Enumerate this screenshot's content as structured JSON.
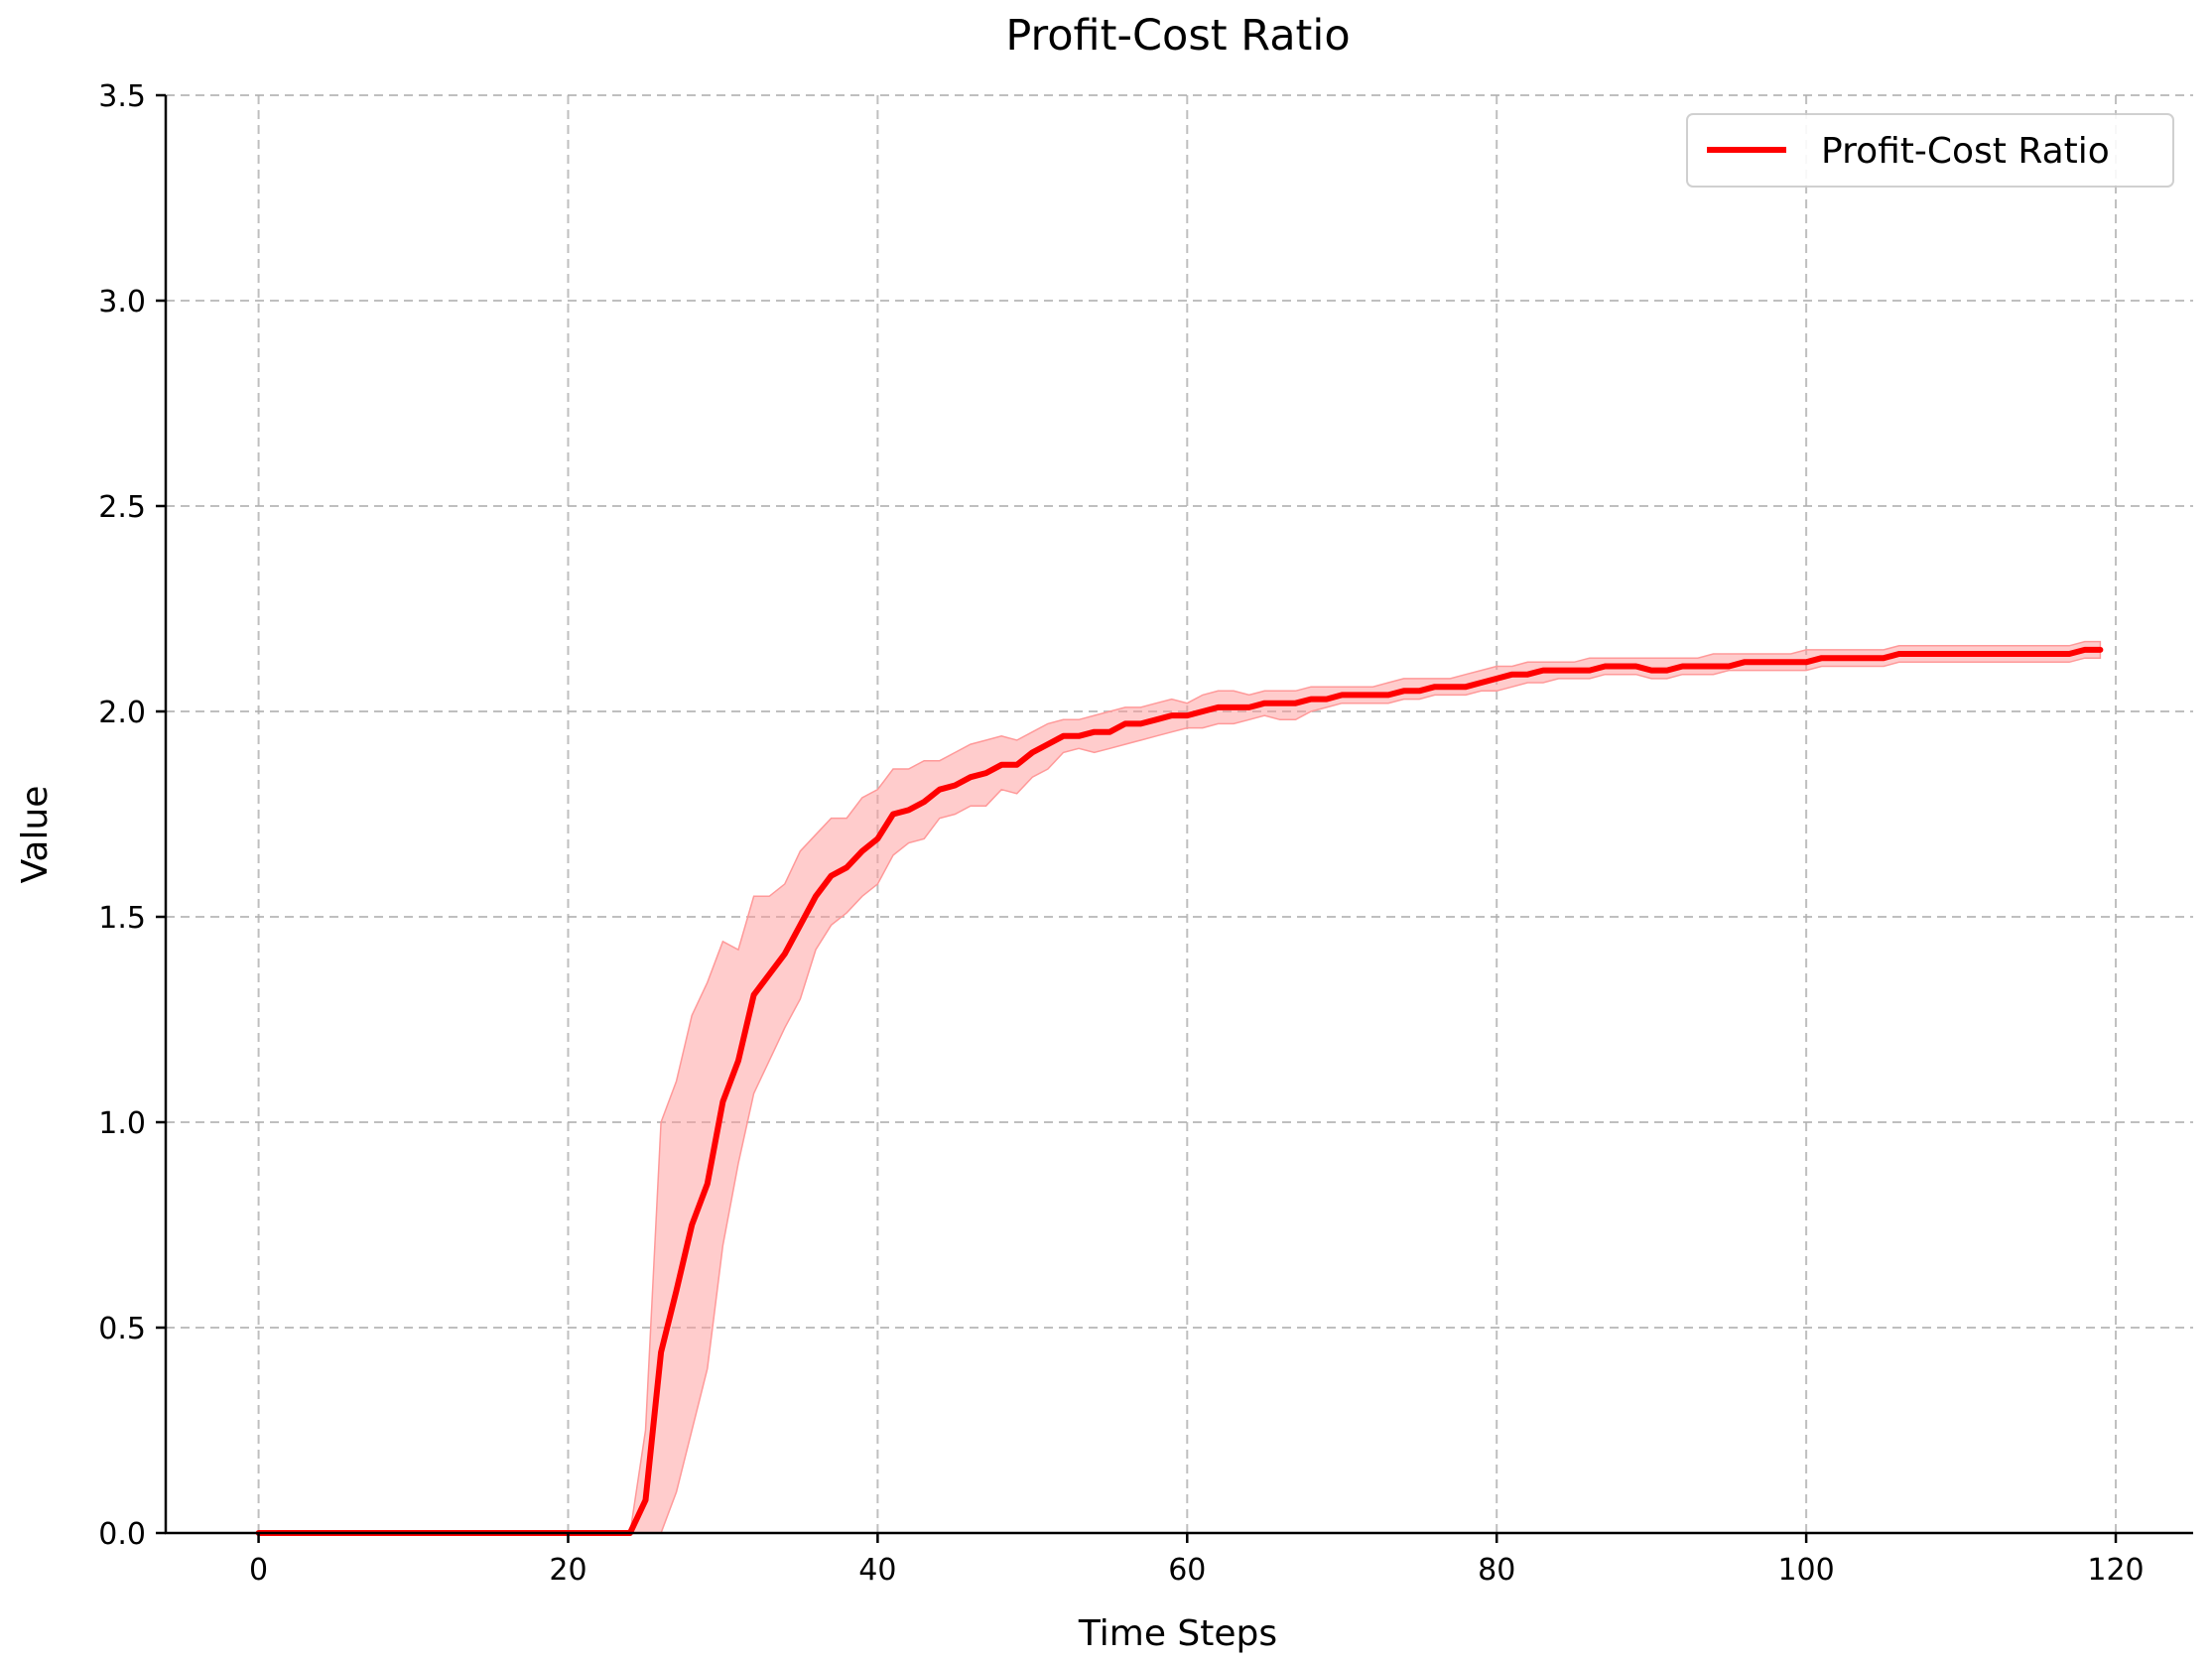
{
  "chart_data": {
    "type": "line",
    "title": "Profit-Cost Ratio",
    "xlabel": "Time Steps",
    "ylabel": "Value",
    "xlim": [
      -6,
      125
    ],
    "ylim": [
      0,
      3.5
    ],
    "xticks": [
      0,
      20,
      40,
      60,
      80,
      100,
      120
    ],
    "yticks": [
      0.0,
      0.5,
      1.0,
      1.5,
      2.0,
      2.5,
      3.0,
      3.5
    ],
    "xtick_labels": [
      "0",
      "20",
      "40",
      "60",
      "80",
      "100",
      "120"
    ],
    "ytick_labels": [
      "0.0",
      "0.5",
      "1.0",
      "1.5",
      "2.0",
      "2.5",
      "3.0",
      "3.5"
    ],
    "grid": true,
    "legend_position": "upper right",
    "series": [
      {
        "name": "Profit-Cost Ratio",
        "color": "#ff0000",
        "band_color": "#ff9999",
        "x": [
          0,
          1,
          2,
          3,
          4,
          5,
          6,
          7,
          8,
          9,
          10,
          11,
          12,
          13,
          14,
          15,
          16,
          17,
          18,
          19,
          20,
          21,
          22,
          23,
          24,
          25,
          26,
          27,
          28,
          29,
          30,
          31,
          32,
          33,
          34,
          35,
          36,
          37,
          38,
          39,
          40,
          41,
          42,
          43,
          44,
          45,
          46,
          47,
          48,
          49,
          50,
          51,
          52,
          53,
          54,
          55,
          56,
          57,
          58,
          59,
          60,
          61,
          62,
          63,
          64,
          65,
          66,
          67,
          68,
          69,
          70,
          71,
          72,
          73,
          74,
          75,
          76,
          77,
          78,
          79,
          80,
          81,
          82,
          83,
          84,
          85,
          86,
          87,
          88,
          89,
          90,
          91,
          92,
          93,
          94,
          95,
          96,
          97,
          98,
          99,
          100,
          101,
          102,
          103,
          104,
          105,
          106,
          107,
          108,
          109,
          110,
          111,
          112,
          113,
          114,
          115,
          116,
          117,
          118,
          119
        ],
        "y": [
          0,
          0,
          0,
          0,
          0,
          0,
          0,
          0,
          0,
          0,
          0,
          0,
          0,
          0,
          0,
          0,
          0,
          0,
          0,
          0,
          0,
          0,
          0,
          0,
          0,
          0.08,
          0.44,
          0.59,
          0.75,
          0.85,
          1.05,
          1.15,
          1.31,
          1.36,
          1.41,
          1.48,
          1.55,
          1.6,
          1.62,
          1.66,
          1.69,
          1.75,
          1.76,
          1.78,
          1.81,
          1.82,
          1.84,
          1.85,
          1.87,
          1.87,
          1.9,
          1.92,
          1.94,
          1.94,
          1.95,
          1.95,
          1.97,
          1.97,
          1.98,
          1.99,
          1.99,
          2.0,
          2.01,
          2.01,
          2.01,
          2.02,
          2.02,
          2.02,
          2.03,
          2.03,
          2.04,
          2.04,
          2.04,
          2.04,
          2.05,
          2.05,
          2.06,
          2.06,
          2.06,
          2.07,
          2.08,
          2.09,
          2.09,
          2.1,
          2.1,
          2.1,
          2.1,
          2.11,
          2.11,
          2.11,
          2.1,
          2.1,
          2.11,
          2.11,
          2.11,
          2.11,
          2.12,
          2.12,
          2.12,
          2.12,
          2.12,
          2.13,
          2.13,
          2.13,
          2.13,
          2.13,
          2.14,
          2.14,
          2.14,
          2.14,
          2.14,
          2.14,
          2.14,
          2.14,
          2.14,
          2.14,
          2.14,
          2.14,
          2.15,
          2.15
        ],
        "y_upper": [
          0,
          0,
          0,
          0,
          0,
          0,
          0,
          0,
          0,
          0,
          0,
          0,
          0,
          0,
          0,
          0,
          0,
          0,
          0,
          0,
          0,
          0,
          0,
          0,
          0,
          0.25,
          1.0,
          1.1,
          1.26,
          1.34,
          1.44,
          1.42,
          1.55,
          1.55,
          1.58,
          1.66,
          1.7,
          1.74,
          1.74,
          1.79,
          1.81,
          1.86,
          1.86,
          1.88,
          1.88,
          1.9,
          1.92,
          1.93,
          1.94,
          1.93,
          1.95,
          1.97,
          1.98,
          1.98,
          1.99,
          2.0,
          2.01,
          2.01,
          2.02,
          2.03,
          2.02,
          2.04,
          2.05,
          2.05,
          2.04,
          2.05,
          2.05,
          2.05,
          2.06,
          2.06,
          2.06,
          2.06,
          2.06,
          2.07,
          2.08,
          2.08,
          2.08,
          2.08,
          2.09,
          2.1,
          2.11,
          2.11,
          2.12,
          2.12,
          2.12,
          2.12,
          2.13,
          2.13,
          2.13,
          2.13,
          2.13,
          2.13,
          2.13,
          2.13,
          2.14,
          2.14,
          2.14,
          2.14,
          2.14,
          2.14,
          2.15,
          2.15,
          2.15,
          2.15,
          2.15,
          2.15,
          2.16,
          2.16,
          2.16,
          2.16,
          2.16,
          2.16,
          2.16,
          2.16,
          2.16,
          2.16,
          2.16,
          2.16,
          2.17,
          2.17
        ],
        "y_lower": [
          0,
          0,
          0,
          0,
          0,
          0,
          0,
          0,
          0,
          0,
          0,
          0,
          0,
          0,
          0,
          0,
          0,
          0,
          0,
          0,
          0,
          0,
          0,
          0,
          0,
          0,
          0,
          0.1,
          0.25,
          0.4,
          0.7,
          0.9,
          1.07,
          1.15,
          1.23,
          1.3,
          1.42,
          1.48,
          1.51,
          1.55,
          1.58,
          1.65,
          1.68,
          1.69,
          1.74,
          1.75,
          1.77,
          1.77,
          1.81,
          1.8,
          1.84,
          1.86,
          1.9,
          1.91,
          1.9,
          1.91,
          1.92,
          1.93,
          1.94,
          1.95,
          1.96,
          1.96,
          1.97,
          1.97,
          1.98,
          1.99,
          1.98,
          1.98,
          2.0,
          2.01,
          2.02,
          2.02,
          2.02,
          2.02,
          2.03,
          2.03,
          2.04,
          2.04,
          2.04,
          2.05,
          2.05,
          2.06,
          2.07,
          2.07,
          2.08,
          2.08,
          2.08,
          2.09,
          2.09,
          2.09,
          2.08,
          2.08,
          2.09,
          2.09,
          2.09,
          2.1,
          2.1,
          2.1,
          2.1,
          2.1,
          2.1,
          2.11,
          2.11,
          2.11,
          2.11,
          2.11,
          2.12,
          2.12,
          2.12,
          2.12,
          2.12,
          2.12,
          2.12,
          2.12,
          2.12,
          2.12,
          2.12,
          2.12,
          2.13,
          2.13
        ]
      }
    ]
  }
}
